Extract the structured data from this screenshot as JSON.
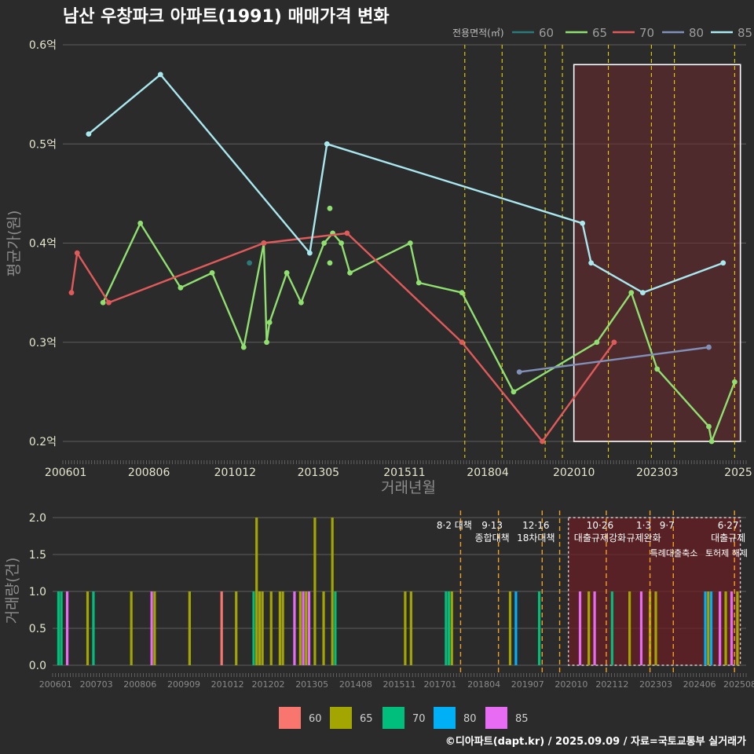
{
  "chart_data": [
    {
      "type": "line",
      "title": "남산 우창파크 아파트(1991) 매매가격 변화",
      "xlabel": "거래년월",
      "ylabel": "평균가(원)",
      "ylim": [
        0.2,
        0.6
      ],
      "y_ticks": [
        "0.2억",
        "0.3억",
        "0.4억",
        "0.5억",
        "0.6억"
      ],
      "x_ticks": [
        "200601",
        "200806",
        "201012",
        "201305",
        "201511",
        "201804",
        "202010",
        "202303",
        "2025"
      ],
      "legend_title": "전용면적(㎡)",
      "legend_position": "top-right",
      "series": [
        {
          "name": "60",
          "color": "#2a7a7a",
          "line": [],
          "points": [
            [
              "2011-05",
              0.38
            ]
          ]
        },
        {
          "name": "65",
          "color": "#90e070",
          "line": [
            [
              "2007-02",
              0.34
            ],
            [
              "2008-03",
              0.42
            ],
            [
              "2009-05",
              0.355
            ],
            [
              "2010-04",
              0.37
            ],
            [
              "2011-03",
              0.295
            ],
            [
              "2011-10",
              0.4
            ],
            [
              "2011-11",
              0.3
            ],
            [
              "2011-12",
              0.32
            ],
            [
              "2012-06",
              0.37
            ],
            [
              "2012-11",
              0.34
            ],
            [
              "2013-07",
              0.4
            ],
            [
              "2013-10",
              0.41
            ],
            [
              "2014-01",
              0.4
            ],
            [
              "2014-04",
              0.37
            ],
            [
              "2016-01",
              0.4
            ],
            [
              "2016-04",
              0.36
            ],
            [
              "2017-07",
              0.35
            ],
            [
              "2019-01",
              0.25
            ],
            [
              "2021-06",
              0.3
            ],
            [
              "2022-06",
              0.35
            ],
            [
              "2023-03",
              0.273
            ],
            [
              "2024-09",
              0.215
            ],
            [
              "2024-10",
              0.2
            ],
            [
              "2025-06",
              0.26
            ]
          ],
          "points": [
            [
              "2013-09",
              0.435
            ],
            [
              "2013-09",
              0.38
            ]
          ]
        },
        {
          "name": "70",
          "color": "#e05a5a",
          "line": [
            [
              "2006-03",
              0.35
            ],
            [
              "2006-05",
              0.39
            ],
            [
              "2007-04",
              0.34
            ],
            [
              "2011-10",
              0.4
            ],
            [
              "2014-03",
              0.41
            ],
            [
              "2017-07",
              0.3
            ],
            [
              "2019-11",
              0.2
            ],
            [
              "2021-12",
              0.3
            ]
          ],
          "points": []
        },
        {
          "name": "80",
          "color": "#8090b8",
          "line": [
            [
              "2019-03",
              0.27
            ],
            [
              "2024-09",
              0.295
            ]
          ],
          "points": []
        },
        {
          "name": "85",
          "color": "#a8e8ee",
          "line": [
            [
              "2006-09",
              0.51
            ],
            [
              "2008-10",
              0.57
            ],
            [
              "2013-02",
              0.39
            ],
            [
              "2013-08",
              0.5
            ],
            [
              "2021-01",
              0.42
            ],
            [
              "2021-04",
              0.38
            ],
            [
              "2022-10",
              0.35
            ],
            [
              "2025-02",
              0.38
            ]
          ],
          "points": []
        }
      ]
    },
    {
      "type": "bar",
      "ylabel": "거래량(건)",
      "ylim": [
        0,
        2
      ],
      "y_ticks": [
        "0.0",
        "0.5",
        "1.0",
        "1.5",
        "2.0"
      ],
      "x_ticks": [
        "200601",
        "200703",
        "200806",
        "200909",
        "201012",
        "201202",
        "201305",
        "201408",
        "201511",
        "201701",
        "201804",
        "201907",
        "202010",
        "202112",
        "202303",
        "202406",
        "202508"
      ],
      "legend": [
        {
          "name": "60",
          "color": "#f8766d"
        },
        {
          "name": "65",
          "color": "#a3a500"
        },
        {
          "name": "70",
          "color": "#00bf7d"
        },
        {
          "name": "80",
          "color": "#00b0f6"
        },
        {
          "name": "85",
          "color": "#e76bf3"
        }
      ],
      "bars": [
        [
          "2006-02",
          "70",
          1
        ],
        [
          "2006-03",
          "70",
          1
        ],
        [
          "2006-05",
          "85",
          1
        ],
        [
          "2006-12",
          "65",
          1
        ],
        [
          "2007-02",
          "70",
          1
        ],
        [
          "2008-03",
          "65",
          1
        ],
        [
          "2008-10",
          "85",
          1
        ],
        [
          "2008-11",
          "65",
          1
        ],
        [
          "2009-11",
          "65",
          1
        ],
        [
          "2010-10",
          "60",
          1
        ],
        [
          "2011-03",
          "65",
          1
        ],
        [
          "2011-09",
          "70",
          1
        ],
        [
          "2011-10",
          "65",
          2
        ],
        [
          "2011-11",
          "65",
          1
        ],
        [
          "2011-12",
          "65",
          1
        ],
        [
          "2012-03",
          "65",
          1
        ],
        [
          "2012-06",
          "65",
          1
        ],
        [
          "2012-07",
          "65",
          1
        ],
        [
          "2012-11",
          "85",
          1
        ],
        [
          "2013-01",
          "65",
          1
        ],
        [
          "2013-02",
          "85",
          1
        ],
        [
          "2013-03",
          "65",
          1
        ],
        [
          "2013-04",
          "85",
          1
        ],
        [
          "2013-06",
          "65",
          2
        ],
        [
          "2013-09",
          "65",
          1
        ],
        [
          "2013-12",
          "65",
          2
        ],
        [
          "2014-01",
          "70",
          1
        ],
        [
          "2016-01",
          "65",
          1
        ],
        [
          "2016-03",
          "65",
          1
        ],
        [
          "2017-03",
          "70",
          1
        ],
        [
          "2017-04",
          "70",
          1
        ],
        [
          "2017-05",
          "65",
          1
        ],
        [
          "2019-01",
          "65",
          1
        ],
        [
          "2019-03",
          "80",
          1
        ],
        [
          "2019-11",
          "70",
          1
        ],
        [
          "2021-01",
          "85",
          1
        ],
        [
          "2021-04",
          "65",
          1
        ],
        [
          "2021-06",
          "85",
          1
        ],
        [
          "2021-12",
          "70",
          1
        ],
        [
          "2022-06",
          "65",
          1
        ],
        [
          "2022-10",
          "85",
          1
        ],
        [
          "2023-01",
          "65",
          1
        ],
        [
          "2023-03",
          "65",
          1
        ],
        [
          "2024-08",
          "80",
          1
        ],
        [
          "2024-09",
          "65",
          1
        ],
        [
          "2024-10",
          "80",
          1
        ],
        [
          "2025-01",
          "85",
          1
        ],
        [
          "2025-03",
          "65",
          1
        ],
        [
          "2025-05",
          "85",
          1
        ],
        [
          "2025-07",
          "65",
          1
        ]
      ]
    }
  ],
  "events": [
    {
      "label": "8·2 대책",
      "date": "2017-08"
    },
    {
      "label": "9·13\n종합대책",
      "date": "2018-09"
    },
    {
      "label": "12·16\n18차대책",
      "date": "2019-12"
    },
    {
      "label": "",
      "date": "2020-06"
    },
    {
      "label": "10·26\n대출규제강화",
      "date": "2021-10"
    },
    {
      "label": "1·3\n규제완화",
      "date": "2023-01"
    },
    {
      "label": "9·7",
      "date": "2023-09"
    },
    {
      "label": "6·27\n대출규제",
      "date": "2025-06"
    }
  ],
  "events_extra": [
    "특례대출축소",
    "토허제 해제"
  ],
  "footer": "©디아파트(dapt.kr) / 2025.09.09 / 자료=국토교통부 실거래가"
}
